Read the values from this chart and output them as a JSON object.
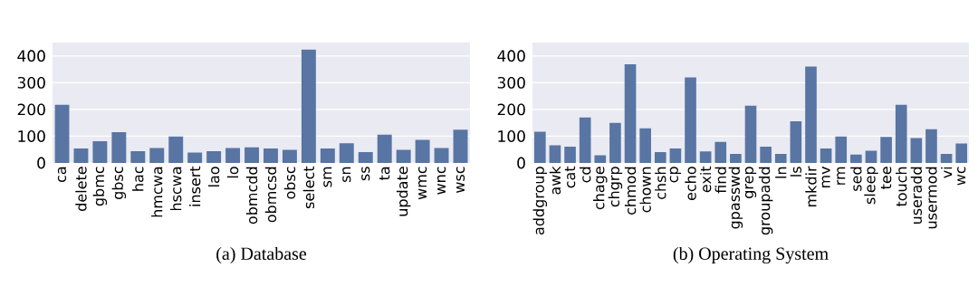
{
  "chart_data": [
    {
      "type": "bar",
      "title": "(a) Database",
      "categories": [
        "ca",
        "delete",
        "gbmc",
        "gbsc",
        "hac",
        "hmcwa",
        "hscwa",
        "insert",
        "lao",
        "lo",
        "obmcdd",
        "obmcsd",
        "obsc",
        "select",
        "sm",
        "sn",
        "ss",
        "ta",
        "update",
        "wmc",
        "wnc",
        "wsc"
      ],
      "values": [
        217,
        54,
        81,
        115,
        44,
        56,
        99,
        39,
        44,
        56,
        58,
        54,
        49,
        424,
        54,
        74,
        41,
        106,
        49,
        86,
        56,
        124
      ],
      "color": "#5875a4",
      "ylim": [
        0,
        450
      ],
      "yticks": [
        0,
        100,
        200,
        300,
        400
      ],
      "grid": "y"
    },
    {
      "type": "bar",
      "title": "(b) Operating System",
      "categories": [
        "addgroup",
        "awk",
        "cat",
        "cd",
        "chage",
        "chgrp",
        "chmod",
        "chown",
        "chsh",
        "cp",
        "echo",
        "exit",
        "find",
        "gpasswd",
        "grep",
        "groupadd",
        "ln",
        "ls",
        "mkdir",
        "mv",
        "rm",
        "sed",
        "sleep",
        "tee",
        "touch",
        "useradd",
        "usermod",
        "vi",
        "wc"
      ],
      "values": [
        117,
        66,
        61,
        170,
        29,
        150,
        369,
        129,
        41,
        54,
        320,
        43,
        79,
        34,
        214,
        61,
        34,
        156,
        360,
        54,
        99,
        31,
        46,
        97,
        217,
        93,
        126,
        34,
        73
      ],
      "color": "#5875a4",
      "ylim": [
        0,
        450
      ],
      "yticks": [
        0,
        100,
        200,
        300,
        400
      ],
      "grid": "y"
    }
  ]
}
